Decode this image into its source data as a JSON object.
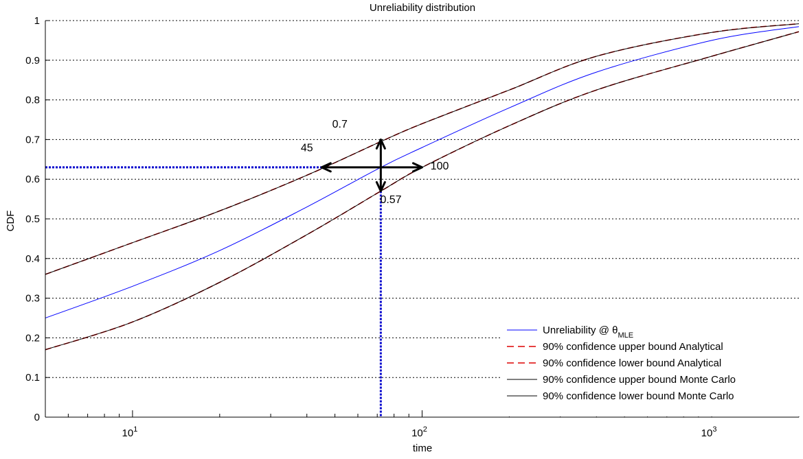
{
  "chart_data": {
    "type": "line",
    "title": "Unreliability distribution",
    "xlabel": "time",
    "ylabel": "CDF",
    "x_scale": "log",
    "xlim": [
      5,
      2000
    ],
    "ylim": [
      0,
      1
    ],
    "grid": "horizontal dotted",
    "y_ticks": [
      "0",
      "0.1",
      "0.2",
      "0.3",
      "0.4",
      "0.5",
      "0.6",
      "0.7",
      "0.8",
      "0.9",
      "1"
    ],
    "x_ticks": [
      {
        "value": 10,
        "base": "10",
        "exp": "1"
      },
      {
        "value": 100,
        "base": "10",
        "exp": "2"
      },
      {
        "value": 1000,
        "base": "10",
        "exp": "3"
      }
    ],
    "legend_placement": "bottom-right",
    "legend": [
      {
        "label": "Unreliability @ θ",
        "sub": "MLE",
        "color": "#0000ff",
        "style": "solid"
      },
      {
        "label": "90% confidence upper bound Analytical",
        "color": "#dd0000",
        "style": "dashed"
      },
      {
        "label": "90% confidence lower bound Analytical",
        "color": "#dd0000",
        "style": "dashed"
      },
      {
        "label": "90% confidence upper bound Monte Carlo",
        "color": "#000000",
        "style": "solid"
      },
      {
        "label": "90% confidence lower bound Monte Carlo",
        "color": "#000000",
        "style": "solid"
      }
    ],
    "series": [
      {
        "key": "mle",
        "color": "#0000ff",
        "style": "solid",
        "x": [
          5,
          10,
          20,
          40,
          72,
          100,
          200,
          400,
          1000,
          2000
        ],
        "y": [
          0.25,
          0.33,
          0.42,
          0.53,
          0.63,
          0.68,
          0.78,
          0.87,
          0.95,
          0.985
        ]
      },
      {
        "key": "upper-analytical",
        "color": "#dd0000",
        "style": "dashed",
        "x": [
          5,
          10,
          20,
          40,
          72,
          100,
          200,
          400,
          1000,
          2000
        ],
        "y": [
          0.36,
          0.44,
          0.52,
          0.61,
          0.695,
          0.74,
          0.825,
          0.91,
          0.97,
          0.992
        ]
      },
      {
        "key": "lower-analytical",
        "color": "#dd0000",
        "style": "dashed",
        "x": [
          5,
          10,
          20,
          40,
          72,
          100,
          200,
          400,
          1000,
          2000
        ],
        "y": [
          0.17,
          0.24,
          0.34,
          0.46,
          0.57,
          0.63,
          0.735,
          0.825,
          0.91,
          0.972
        ]
      },
      {
        "key": "upper-monte-carlo",
        "color": "#000000",
        "style": "solid",
        "x": [
          5,
          10,
          20,
          40,
          72,
          100,
          200,
          400,
          1000,
          2000
        ],
        "y": [
          0.36,
          0.44,
          0.52,
          0.61,
          0.695,
          0.74,
          0.825,
          0.91,
          0.97,
          0.992
        ]
      },
      {
        "key": "lower-monte-carlo",
        "color": "#000000",
        "style": "solid",
        "x": [
          5,
          10,
          20,
          40,
          72,
          100,
          200,
          400,
          1000,
          2000
        ],
        "y": [
          0.17,
          0.24,
          0.34,
          0.46,
          0.57,
          0.63,
          0.735,
          0.825,
          0.91,
          0.972
        ]
      }
    ],
    "reference_lines": {
      "horizontal_y": 0.63,
      "vertical_x": 72,
      "color": "#0000cc"
    },
    "annotations": {
      "center": {
        "x": 72,
        "y": 0.63
      },
      "arrow_left_x": 45,
      "arrow_right_x": 100,
      "arrow_up_y": 0.7,
      "arrow_down_y": 0.57,
      "labels": [
        {
          "text": "0.7",
          "x": 52,
          "y": 0.73
        },
        {
          "text": "45",
          "x": 40,
          "y": 0.67
        },
        {
          "text": "100",
          "x": 115,
          "y": 0.625
        },
        {
          "text": "0.57",
          "x": 78,
          "y": 0.54
        }
      ]
    }
  }
}
